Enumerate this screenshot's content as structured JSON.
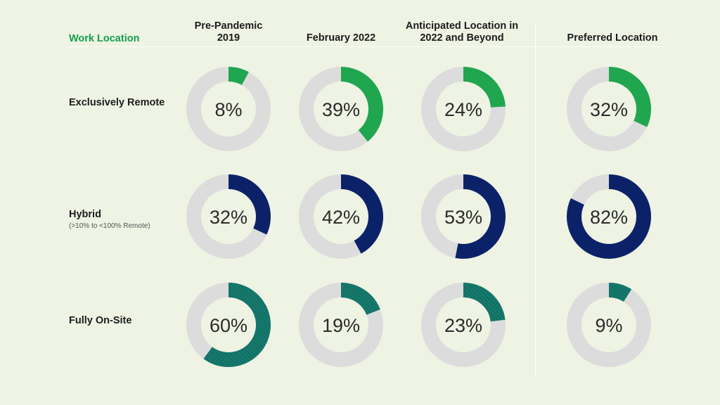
{
  "chart_data": {
    "type": "donut-grid",
    "row_header": "Work Location",
    "columns": [
      "Pre-Pandemic 2019",
      "February 2022",
      "Anticipated Location in 2022 and Beyond",
      "Preferred Location"
    ],
    "column_lines": [
      [
        "Pre-Pandemic",
        "2019"
      ],
      [
        "February 2022"
      ],
      [
        "Anticipated Location in",
        "2022 and Beyond"
      ],
      [
        "Preferred Location"
      ]
    ],
    "rows": [
      {
        "label": "Exclusively Remote",
        "sublabel": "",
        "color": "#1fa64f",
        "pattern": "solid",
        "values": [
          8,
          39,
          24,
          32
        ]
      },
      {
        "label": "Hybrid",
        "sublabel": "(>10% to <100% Remote)",
        "color": "#0c2268",
        "pattern": "solid",
        "values": [
          32,
          42,
          53,
          82
        ]
      },
      {
        "label": "Fully On-Site",
        "sublabel": "",
        "color": "#167a6e",
        "pattern": "hatched",
        "values": [
          60,
          19,
          23,
          9
        ]
      }
    ],
    "track_color": "#dcdcdc",
    "value_suffix": "%"
  }
}
